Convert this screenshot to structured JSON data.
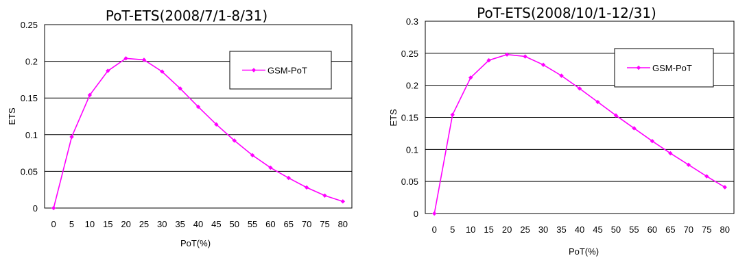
{
  "chart_data": [
    {
      "type": "line",
      "title": "PoT-ETS(2008/7/1-8/31)",
      "xlabel": "PoT(%)",
      "ylabel": "ETS",
      "categories": [
        "0",
        "5",
        "10",
        "15",
        "20",
        "25",
        "30",
        "35",
        "40",
        "45",
        "50",
        "55",
        "60",
        "65",
        "70",
        "75",
        "80"
      ],
      "ylim": [
        0,
        0.25
      ],
      "yticks": [
        "0",
        "0.05",
        "0.1",
        "0.15",
        "0.2",
        "0.25"
      ],
      "grid": true,
      "legend_position": "upper-right",
      "series": [
        {
          "name": "GSM-PoT",
          "color": "#ff00ff",
          "values": [
            0,
            0.097,
            0.154,
            0.187,
            0.204,
            0.202,
            0.186,
            0.163,
            0.138,
            0.114,
            0.092,
            0.072,
            0.055,
            0.041,
            0.028,
            0.017,
            0.009
          ]
        }
      ]
    },
    {
      "type": "line",
      "title": "PoT-ETS(2008/10/1-12/31)",
      "xlabel": "PoT(%)",
      "ylabel": "ETS",
      "categories": [
        "0",
        "5",
        "10",
        "15",
        "20",
        "25",
        "30",
        "35",
        "40",
        "45",
        "50",
        "55",
        "60",
        "65",
        "70",
        "75",
        "80"
      ],
      "ylim": [
        0,
        0.3
      ],
      "yticks": [
        "0",
        "0.05",
        "0.1",
        "0.15",
        "0.2",
        "0.25",
        "0.3"
      ],
      "grid": true,
      "legend_position": "upper-right",
      "series": [
        {
          "name": "GSM-PoT",
          "color": "#ff00ff",
          "values": [
            0,
            0.154,
            0.212,
            0.239,
            0.248,
            0.245,
            0.232,
            0.215,
            0.195,
            0.174,
            0.153,
            0.133,
            0.113,
            0.094,
            0.076,
            0.058,
            0.041
          ]
        }
      ]
    }
  ]
}
